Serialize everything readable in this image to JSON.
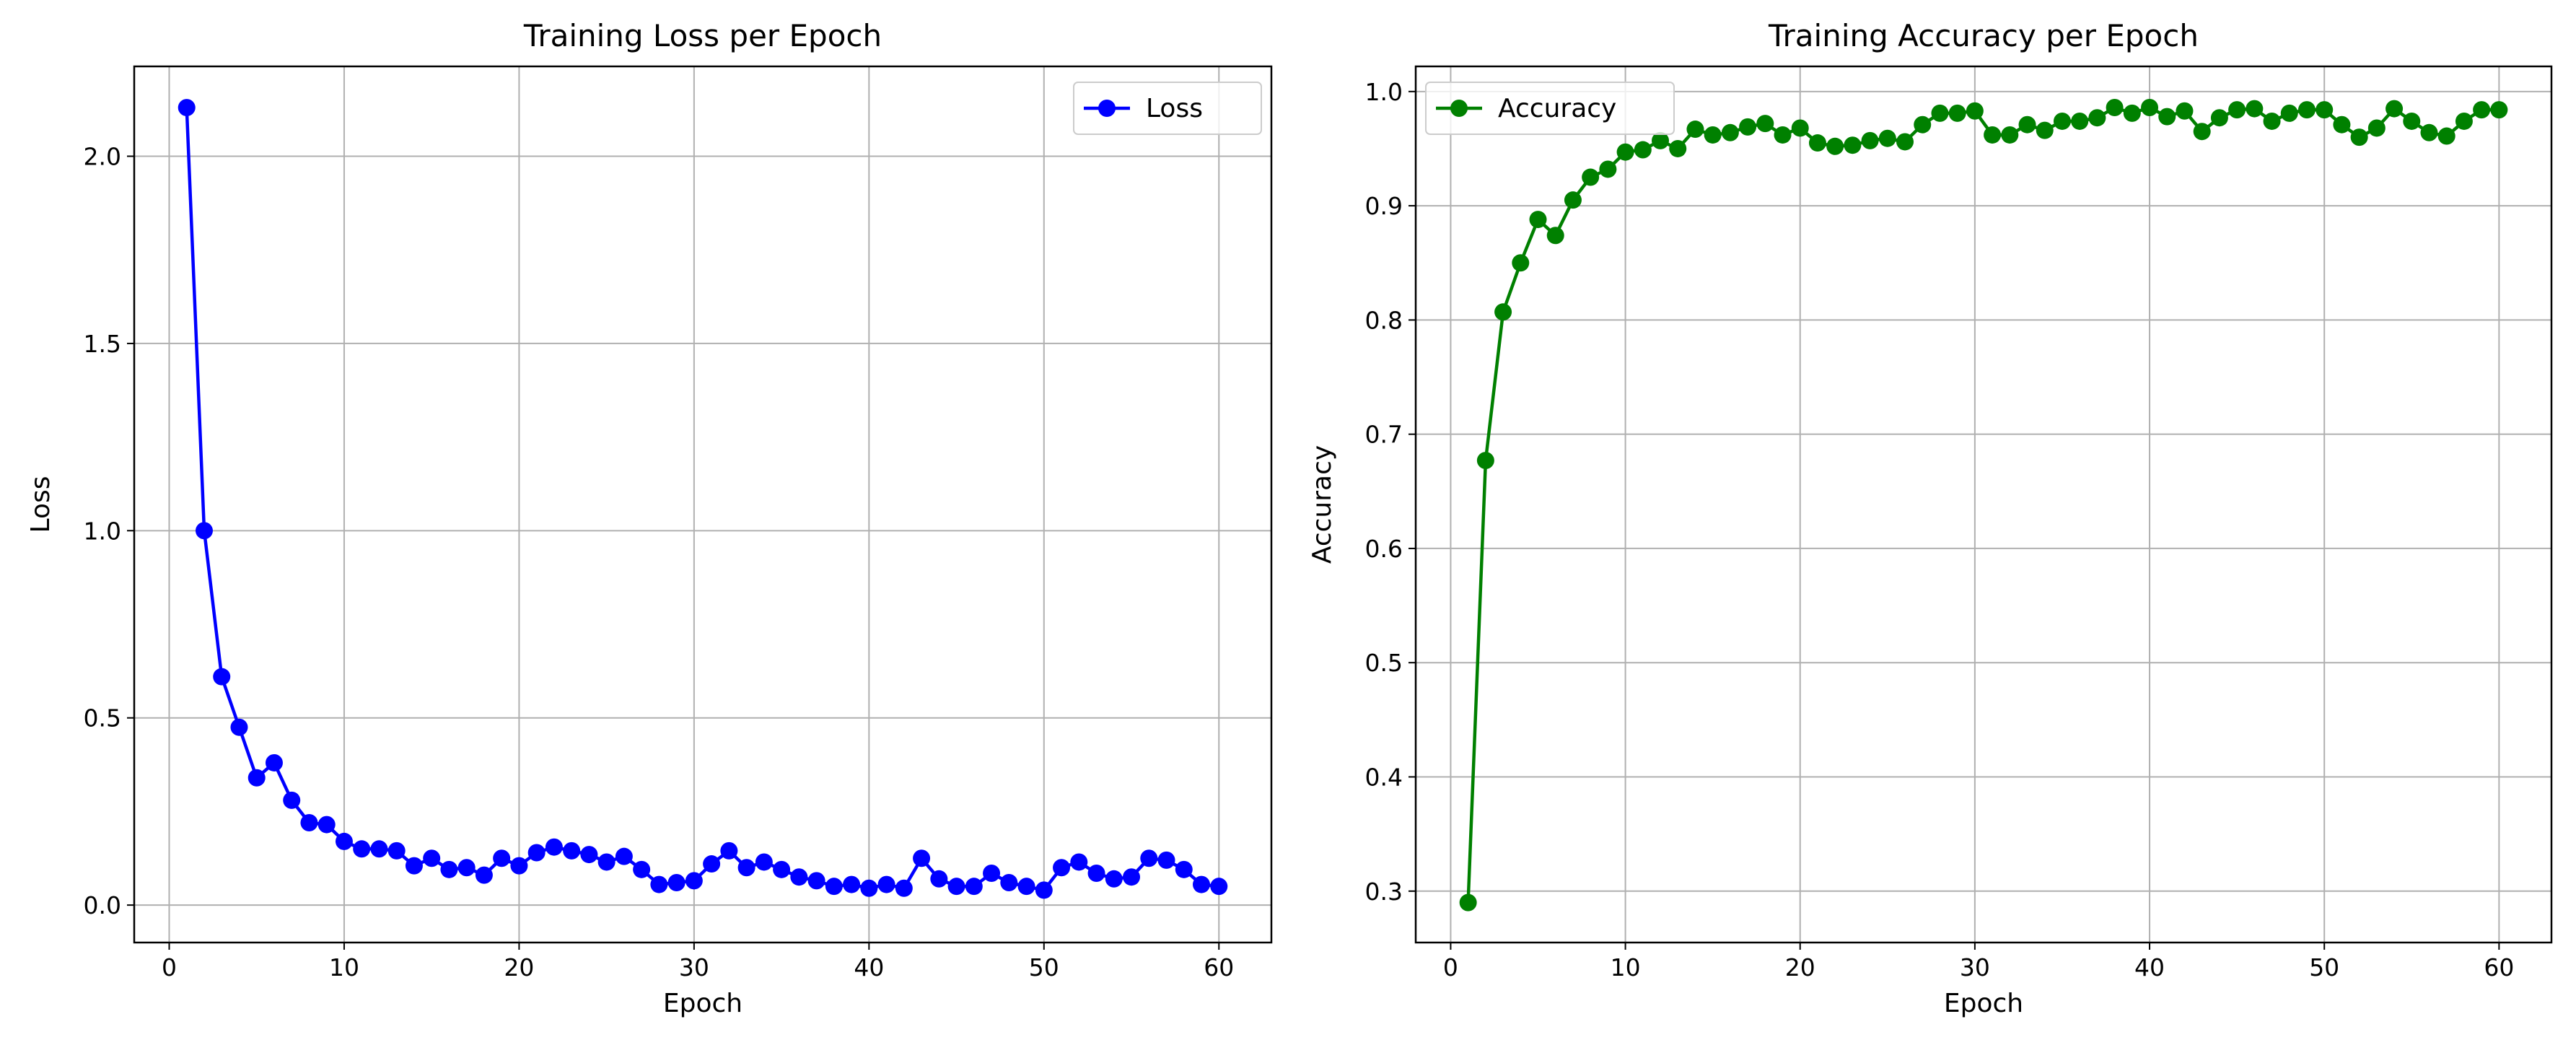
{
  "chart_data": [
    {
      "type": "line",
      "title": "Training Loss per Epoch",
      "xlabel": "Epoch",
      "ylabel": "Loss",
      "xlim": [
        -2,
        63
      ],
      "ylim": [
        -0.1,
        2.24
      ],
      "xticks": [
        0,
        10,
        20,
        30,
        40,
        50,
        60
      ],
      "xtick_labels": [
        "0",
        "10",
        "20",
        "30",
        "40",
        "50",
        "60"
      ],
      "yticks": [
        0.0,
        0.5,
        1.0,
        1.5,
        2.0
      ],
      "ytick_labels": [
        "0.0",
        "0.5",
        "1.0",
        "1.5",
        "2.0"
      ],
      "grid": true,
      "legend_position": "upper-right",
      "series": [
        {
          "name": "Loss",
          "color": "#0000ff",
          "marker": "circle",
          "x": [
            1,
            2,
            3,
            4,
            5,
            6,
            7,
            8,
            9,
            10,
            11,
            12,
            13,
            14,
            15,
            16,
            17,
            18,
            19,
            20,
            21,
            22,
            23,
            24,
            25,
            26,
            27,
            28,
            29,
            30,
            31,
            32,
            33,
            34,
            35,
            36,
            37,
            38,
            39,
            40,
            41,
            42,
            43,
            44,
            45,
            46,
            47,
            48,
            49,
            50,
            51,
            52,
            53,
            54,
            55,
            56,
            57,
            58,
            59,
            60
          ],
          "y": [
            2.13,
            1.0,
            0.61,
            0.475,
            0.34,
            0.38,
            0.28,
            0.22,
            0.215,
            0.17,
            0.15,
            0.15,
            0.145,
            0.105,
            0.125,
            0.095,
            0.1,
            0.08,
            0.125,
            0.105,
            0.14,
            0.155,
            0.145,
            0.135,
            0.115,
            0.13,
            0.095,
            0.055,
            0.06,
            0.065,
            0.11,
            0.145,
            0.1,
            0.115,
            0.095,
            0.075,
            0.065,
            0.05,
            0.055,
            0.045,
            0.055,
            0.045,
            0.125,
            0.07,
            0.05,
            0.05,
            0.085,
            0.06,
            0.05,
            0.04,
            0.1,
            0.115,
            0.085,
            0.07,
            0.075,
            0.125,
            0.12,
            0.095,
            0.055,
            0.05
          ]
        }
      ]
    },
    {
      "type": "line",
      "title": "Training Accuracy per Epoch",
      "xlabel": "Epoch",
      "ylabel": "Accuracy",
      "xlim": [
        -2,
        63
      ],
      "ylim": [
        0.255,
        1.022
      ],
      "xticks": [
        0,
        10,
        20,
        30,
        40,
        50,
        60
      ],
      "xtick_labels": [
        "0",
        "10",
        "20",
        "30",
        "40",
        "50",
        "60"
      ],
      "yticks": [
        0.3,
        0.4,
        0.5,
        0.6,
        0.7,
        0.8,
        0.9,
        1.0
      ],
      "ytick_labels": [
        "0.3",
        "0.4",
        "0.5",
        "0.6",
        "0.7",
        "0.8",
        "0.9",
        "1.0"
      ],
      "grid": true,
      "legend_position": "upper-left",
      "series": [
        {
          "name": "Accuracy",
          "color": "#008000",
          "marker": "circle",
          "x": [
            1,
            2,
            3,
            4,
            5,
            6,
            7,
            8,
            9,
            10,
            11,
            12,
            13,
            14,
            15,
            16,
            17,
            18,
            19,
            20,
            21,
            22,
            23,
            24,
            25,
            26,
            27,
            28,
            29,
            30,
            31,
            32,
            33,
            34,
            35,
            36,
            37,
            38,
            39,
            40,
            41,
            42,
            43,
            44,
            45,
            46,
            47,
            48,
            49,
            50,
            51,
            52,
            53,
            54,
            55,
            56,
            57,
            58,
            59,
            60
          ],
          "y": [
            0.29,
            0.677,
            0.807,
            0.85,
            0.888,
            0.874,
            0.905,
            0.925,
            0.932,
            0.947,
            0.949,
            0.957,
            0.95,
            0.967,
            0.962,
            0.964,
            0.969,
            0.972,
            0.962,
            0.968,
            0.955,
            0.952,
            0.953,
            0.957,
            0.959,
            0.956,
            0.971,
            0.981,
            0.981,
            0.983,
            0.962,
            0.962,
            0.971,
            0.966,
            0.974,
            0.974,
            0.977,
            0.986,
            0.981,
            0.986,
            0.978,
            0.983,
            0.965,
            0.977,
            0.984,
            0.985,
            0.974,
            0.981,
            0.984,
            0.984,
            0.971,
            0.96,
            0.968,
            0.985,
            0.974,
            0.964,
            0.961,
            0.974,
            0.984,
            0.984
          ]
        }
      ]
    }
  ]
}
